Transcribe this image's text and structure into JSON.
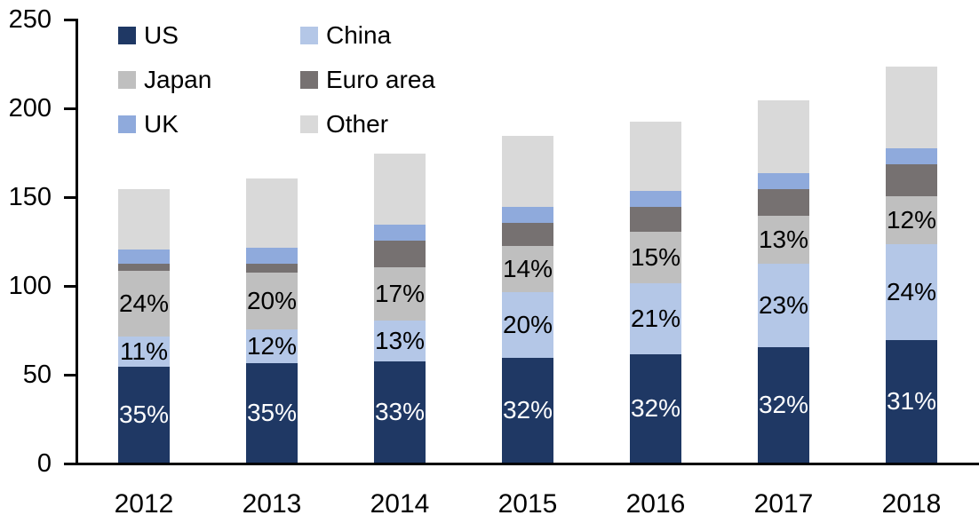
{
  "chart_data": {
    "type": "bar",
    "stacked": true,
    "title": "",
    "xlabel": "",
    "ylabel": "",
    "categories": [
      "2012",
      "2013",
      "2014",
      "2015",
      "2016",
      "2017",
      "2018"
    ],
    "series": [
      {
        "name": "US",
        "color": "#1f3864",
        "values": [
          54,
          56,
          57,
          59,
          61,
          65,
          69
        ],
        "segment_labels": [
          "35%",
          "35%",
          "33%",
          "32%",
          "32%",
          "32%",
          "31%"
        ],
        "label_color": "#ffffff"
      },
      {
        "name": "China",
        "color": "#b4c7e7",
        "values": [
          17,
          19,
          23,
          37,
          40,
          47,
          54
        ],
        "segment_labels": [
          "11%",
          "12%",
          "13%",
          "20%",
          "21%",
          "23%",
          "24%"
        ],
        "label_color": "#000000"
      },
      {
        "name": "Japan",
        "color": "#bfbfbf",
        "values": [
          37,
          32,
          30,
          26,
          29,
          27,
          27
        ],
        "segment_labels": [
          "24%",
          "20%",
          "17%",
          "14%",
          "15%",
          "13%",
          "12%"
        ],
        "label_color": "#000000"
      },
      {
        "name": "Euro area",
        "color": "#767171",
        "values": [
          4,
          5,
          15,
          13,
          14,
          15,
          18
        ],
        "segment_labels": null,
        "label_color": null
      },
      {
        "name": "UK",
        "color": "#8faadc",
        "values": [
          8,
          9,
          9,
          9,
          9,
          9,
          9
        ],
        "segment_labels": null,
        "label_color": null
      },
      {
        "name": "Other",
        "color": "#d9d9d9",
        "values": [
          34,
          39,
          40,
          40,
          39,
          41,
          46
        ],
        "segment_labels": null,
        "label_color": null
      }
    ],
    "totals": [
      154,
      160,
      174,
      184,
      192,
      204,
      223
    ],
    "ylim": [
      0,
      250
    ],
    "yticks": [
      0,
      50,
      100,
      150,
      200,
      250
    ],
    "grid": false,
    "legend_position": "top-left",
    "legend_order": [
      "US",
      "China",
      "Japan",
      "Euro area",
      "UK",
      "Other"
    ],
    "axis_color": "#000000",
    "background_color": "#ffffff"
  }
}
